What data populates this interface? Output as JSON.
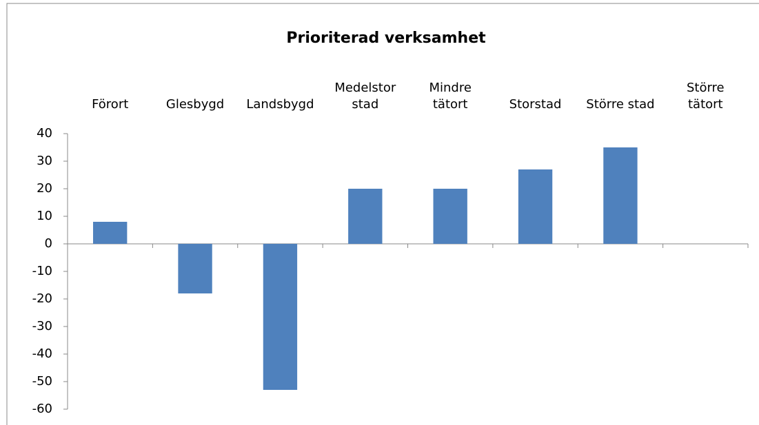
{
  "chart_data": {
    "type": "bar",
    "title": "Prioriterad verksamhet",
    "categories": [
      "Förort",
      "Glesbygd",
      "Landsbygd",
      "Medelstor\nstad",
      "Mindre\ntätort",
      "Storstad",
      "Större stad",
      "Större\ntätort"
    ],
    "values": [
      8,
      -18,
      -53,
      20,
      20,
      27,
      35,
      0
    ],
    "color": "#4f81bd",
    "ylim": [
      -60,
      40
    ],
    "yticks": [
      -60,
      -50,
      -40,
      -30,
      -20,
      -10,
      0,
      10,
      20,
      30,
      40
    ],
    "grid": false
  }
}
